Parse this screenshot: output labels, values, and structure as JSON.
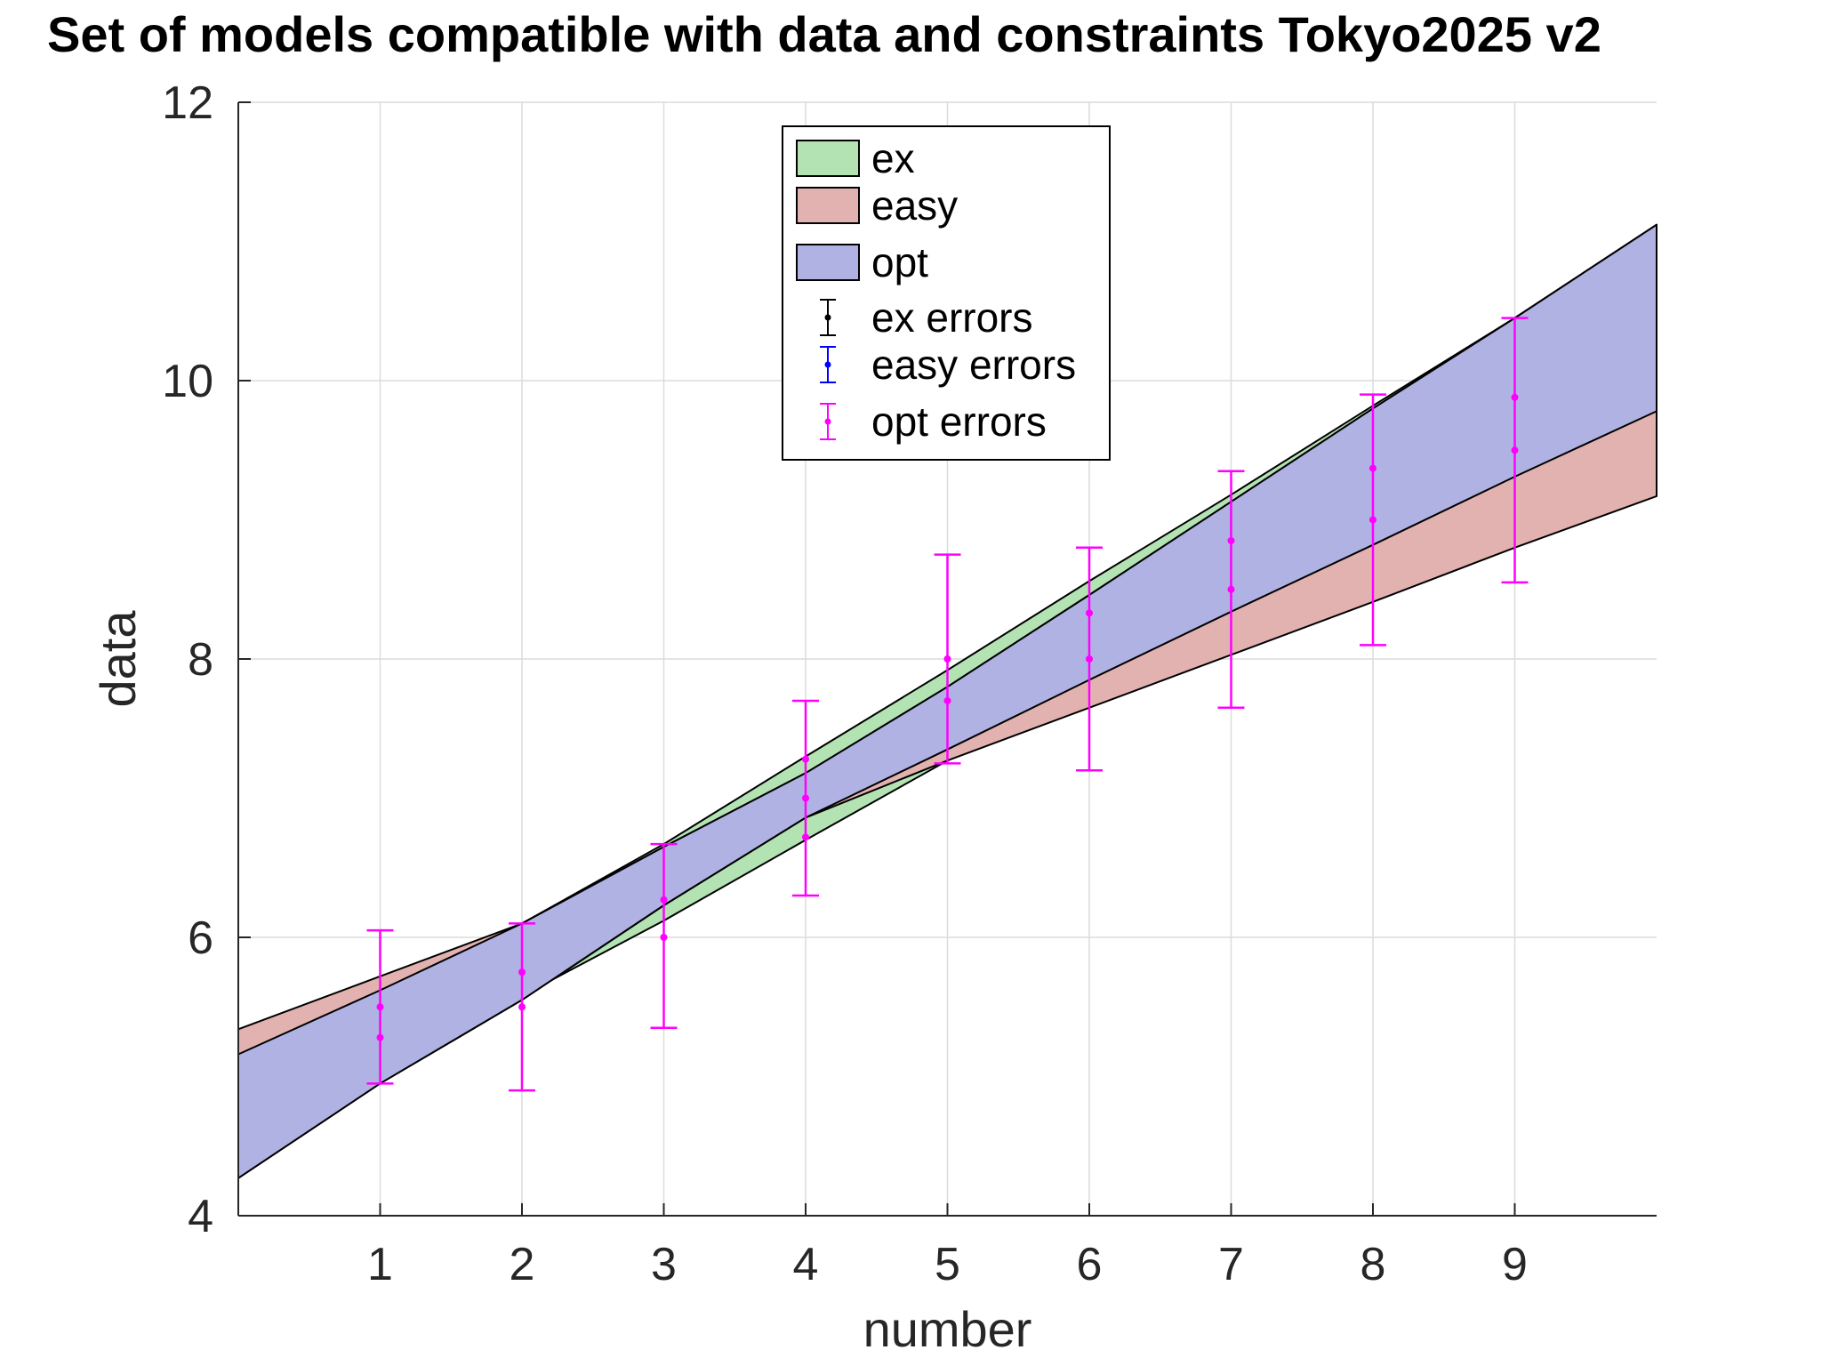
{
  "chart_data": {
    "type": "area",
    "title": "Set of models compatible with data and constraints Tokyo2025 v2",
    "xlabel": "number",
    "ylabel": "data",
    "xlim": [
      0,
      10
    ],
    "ylim": [
      4,
      12
    ],
    "xticks": [
      1,
      2,
      3,
      4,
      5,
      6,
      7,
      8,
      9
    ],
    "yticks": [
      4,
      6,
      8,
      10,
      12
    ],
    "grid": true,
    "legend_position": "top-center",
    "bands": [
      {
        "name": "ex",
        "color": "#b3e3b3",
        "x": [
          0,
          1,
          2,
          3,
          4,
          5,
          6,
          7,
          8,
          9,
          10
        ],
        "upper": [
          4.27,
          4.96,
          6.1,
          6.67,
          7.3,
          7.92,
          8.56,
          9.18,
          9.82,
          10.45,
          11.12
        ],
        "lower": [
          4.27,
          4.96,
          5.58,
          6.12,
          6.7,
          7.27,
          7.85,
          8.34,
          8.82,
          9.31,
          9.78
        ]
      },
      {
        "name": "easy",
        "color": "#e2b2b0",
        "x": [
          0,
          1,
          2,
          3,
          4,
          5,
          6,
          7,
          8,
          9,
          10
        ],
        "upper": [
          5.34,
          5.72,
          6.1,
          6.65,
          7.18,
          7.8,
          8.46,
          9.13,
          9.8,
          10.45,
          11.12
        ],
        "lower": [
          4.27,
          4.95,
          5.55,
          6.23,
          6.86,
          7.27,
          7.65,
          8.03,
          8.41,
          8.8,
          9.17
        ]
      },
      {
        "name": "opt",
        "color": "#b0b2e3",
        "x": [
          0,
          1,
          2,
          3,
          4,
          5,
          6,
          7,
          8,
          9,
          10
        ],
        "upper": [
          5.16,
          5.62,
          6.1,
          6.65,
          7.18,
          7.8,
          8.46,
          9.13,
          9.8,
          10.45,
          11.12
        ],
        "lower": [
          4.27,
          4.95,
          5.55,
          6.23,
          6.86,
          7.35,
          7.85,
          8.34,
          8.82,
          9.31,
          9.78
        ]
      }
    ],
    "error_series": [
      {
        "name": "ex errors",
        "color": "#000000",
        "points": []
      },
      {
        "name": "easy errors",
        "color": "#0000ff",
        "points": []
      },
      {
        "name": "opt errors",
        "color": "#ff00ff",
        "points": [
          {
            "x": 1,
            "center": 5.5,
            "upper": 6.05,
            "lower": 4.95,
            "markers": [
              5.5,
              5.28
            ]
          },
          {
            "x": 2,
            "center": 5.5,
            "upper": 6.1,
            "lower": 4.9,
            "markers": [
              5.75,
              5.5
            ]
          },
          {
            "x": 3,
            "center": 6.0,
            "upper": 6.67,
            "lower": 5.35,
            "markers": [
              6.27,
              6.0
            ]
          },
          {
            "x": 4,
            "center": 7.0,
            "upper": 7.7,
            "lower": 6.3,
            "markers": [
              7.28,
              7.0,
              6.72
            ]
          },
          {
            "x": 5,
            "center": 8.0,
            "upper": 8.75,
            "lower": 7.25,
            "markers": [
              8.0,
              7.7
            ]
          },
          {
            "x": 6,
            "center": 8.0,
            "upper": 8.8,
            "lower": 7.2,
            "markers": [
              8.33,
              8.0
            ]
          },
          {
            "x": 7,
            "center": 8.5,
            "upper": 9.35,
            "lower": 7.65,
            "markers": [
              8.85,
              8.5
            ]
          },
          {
            "x": 8,
            "center": 9.0,
            "upper": 9.9,
            "lower": 8.1,
            "markers": [
              9.37,
              9.0
            ]
          },
          {
            "x": 9,
            "center": 9.5,
            "upper": 10.45,
            "lower": 8.55,
            "markers": [
              9.88,
              9.5
            ]
          }
        ]
      }
    ],
    "legend": [
      {
        "label": "ex",
        "kind": "patch",
        "color": "#b3e3b3"
      },
      {
        "label": "easy",
        "kind": "patch",
        "color": "#e2b2b0"
      },
      {
        "label": "opt",
        "kind": "patch",
        "color": "#b0b2e3"
      },
      {
        "label": "ex errors",
        "kind": "errorbar",
        "color": "#000000"
      },
      {
        "label": "easy errors",
        "kind": "errorbar",
        "color": "#0000ff"
      },
      {
        "label": "opt errors",
        "kind": "errorbar",
        "color": "#ff00ff"
      }
    ]
  }
}
